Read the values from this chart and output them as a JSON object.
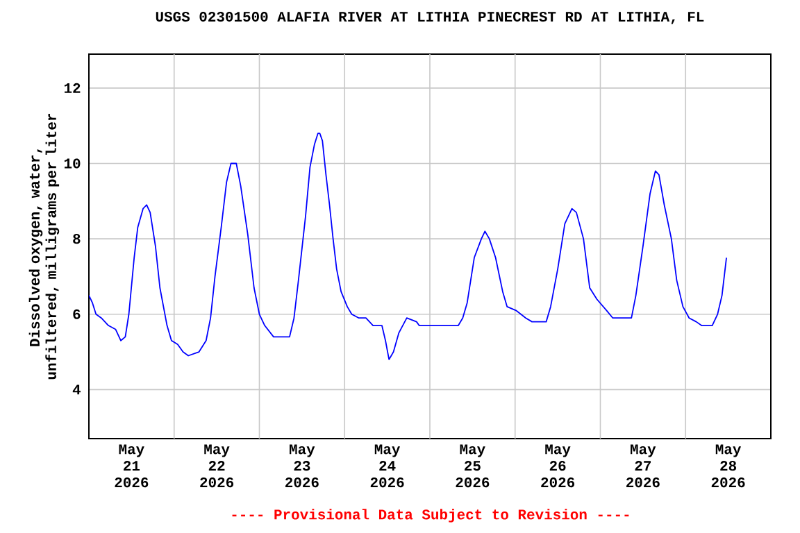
{
  "chart_data": {
    "type": "line",
    "title": "USGS 02301500 ALAFIA RIVER AT LITHIA PINECREST RD AT LITHIA, FL",
    "ylabel": "Dissolved oxygen, water, unfiltered, milligrams per liter",
    "annotations": [
      "---- Provisional Data Subject to Revision ----"
    ],
    "x": [
      "2026-05-21T00:00",
      "2026-05-21T01:00",
      "2026-05-21T02:00",
      "2026-05-21T03:30",
      "2026-05-21T05:30",
      "2026-05-21T07:30",
      "2026-05-21T09:00",
      "2026-05-21T10:15",
      "2026-05-21T11:15",
      "2026-05-21T12:45",
      "2026-05-21T13:45",
      "2026-05-21T15:15",
      "2026-05-21T16:15",
      "2026-05-21T17:15",
      "2026-05-21T18:45",
      "2026-05-21T20:00",
      "2026-05-21T22:00",
      "2026-05-21T23:15",
      "2026-05-22T01:00",
      "2026-05-22T02:30",
      "2026-05-22T04:00",
      "2026-05-22T07:00",
      "2026-05-22T09:00",
      "2026-05-22T10:15",
      "2026-05-22T11:30",
      "2026-05-22T13:15",
      "2026-05-22T14:45",
      "2026-05-22T16:00",
      "2026-05-22T17:30",
      "2026-05-22T18:45",
      "2026-05-22T20:45",
      "2026-05-22T22:30",
      "2026-05-23T00:00",
      "2026-05-23T01:30",
      "2026-05-23T04:00",
      "2026-05-23T08:30",
      "2026-05-23T09:45",
      "2026-05-23T11:00",
      "2026-05-23T13:00",
      "2026-05-23T14:15",
      "2026-05-23T15:30",
      "2026-05-23T16:30",
      "2026-05-23T17:00",
      "2026-05-23T17:45",
      "2026-05-23T18:45",
      "2026-05-23T19:45",
      "2026-05-23T20:45",
      "2026-05-23T21:45",
      "2026-05-23T23:00",
      "2026-05-24T00:45",
      "2026-05-24T02:00",
      "2026-05-24T04:00",
      "2026-05-24T06:00",
      "2026-05-24T08:00",
      "2026-05-24T10:30",
      "2026-05-24T11:30",
      "2026-05-24T12:30",
      "2026-05-24T13:45",
      "2026-05-24T15:15",
      "2026-05-24T17:30",
      "2026-05-24T20:15",
      "2026-05-24T21:00",
      "2026-05-25T08:00",
      "2026-05-25T09:15",
      "2026-05-25T10:30",
      "2026-05-25T12:30",
      "2026-05-25T14:30",
      "2026-05-25T15:30",
      "2026-05-25T16:45",
      "2026-05-25T18:30",
      "2026-05-25T20:30",
      "2026-05-25T21:45",
      "2026-05-26T00:15",
      "2026-05-26T03:00",
      "2026-05-26T04:45",
      "2026-05-26T08:45",
      "2026-05-26T10:00",
      "2026-05-26T12:00",
      "2026-05-26T14:00",
      "2026-05-26T16:00",
      "2026-05-26T17:15",
      "2026-05-26T19:15",
      "2026-05-26T21:00",
      "2026-05-26T23:00",
      "2026-05-27T01:45",
      "2026-05-27T03:30",
      "2026-05-27T08:45",
      "2026-05-27T10:00",
      "2026-05-27T12:00",
      "2026-05-27T14:00",
      "2026-05-27T15:30",
      "2026-05-27T16:30",
      "2026-05-27T18:00",
      "2026-05-27T20:00",
      "2026-05-27T21:30",
      "2026-05-27T23:15",
      "2026-05-28T01:00",
      "2026-05-28T03:00",
      "2026-05-28T04:30",
      "2026-05-28T07:30",
      "2026-05-28T09:00",
      "2026-05-28T10:15",
      "2026-05-28T11:30"
    ],
    "series": [
      {
        "color": "#0000ff",
        "values": [
          6.5,
          6.3,
          6.0,
          5.9,
          5.7,
          5.6,
          5.3,
          5.4,
          6.0,
          7.5,
          8.3,
          8.8,
          8.9,
          8.7,
          7.8,
          6.7,
          5.7,
          5.3,
          5.2,
          5.0,
          4.9,
          5.0,
          5.3,
          5.9,
          7.0,
          8.3,
          9.5,
          10.0,
          10.0,
          9.4,
          8.1,
          6.7,
          6.0,
          5.7,
          5.4,
          5.4,
          5.9,
          6.9,
          8.6,
          9.9,
          10.5,
          10.8,
          10.8,
          10.6,
          9.7,
          8.9,
          8.0,
          7.2,
          6.6,
          6.2,
          6.0,
          5.9,
          5.9,
          5.7,
          5.7,
          5.3,
          4.8,
          5.0,
          5.5,
          5.9,
          5.8,
          5.7,
          5.7,
          5.9,
          6.3,
          7.5,
          8.0,
          8.2,
          8.0,
          7.5,
          6.6,
          6.2,
          6.1,
          5.9,
          5.8,
          5.8,
          6.2,
          7.2,
          8.4,
          8.8,
          8.7,
          8.0,
          6.7,
          6.4,
          6.1,
          5.9,
          5.9,
          6.5,
          7.8,
          9.2,
          9.8,
          9.7,
          8.9,
          8.0,
          6.9,
          6.2,
          5.9,
          5.8,
          5.7,
          5.7,
          6.0,
          6.5,
          7.5
        ]
      }
    ],
    "xlim": [
      "2026-05-21T00:00",
      "2026-05-29T00:00"
    ],
    "xticks": [
      {
        "value": "2026-05-21T12:00",
        "label": "May 21 2026"
      },
      {
        "value": "2026-05-22T12:00",
        "label": "May 22 2026"
      },
      {
        "value": "2026-05-23T12:00",
        "label": "May 23 2026"
      },
      {
        "value": "2026-05-24T12:00",
        "label": "May 24 2026"
      },
      {
        "value": "2026-05-25T12:00",
        "label": "May 25 2026"
      },
      {
        "value": "2026-05-26T12:00",
        "label": "May 26 2026"
      },
      {
        "value": "2026-05-27T12:00",
        "label": "May 27 2026"
      },
      {
        "value": "2026-05-28T12:00",
        "label": "May 28 2026"
      },
      {
        "value": "2026-05-22T00:00",
        "label": null
      },
      {
        "value": "2026-05-23T00:00",
        "label": null
      },
      {
        "value": "2026-05-24T00:00",
        "label": null
      },
      {
        "value": "2026-05-25T00:00",
        "label": null
      },
      {
        "value": "2026-05-26T00:00",
        "label": null
      },
      {
        "value": "2026-05-27T00:00",
        "label": null
      },
      {
        "value": "2026-05-28T00:00",
        "label": null
      }
    ],
    "ylim": [
      2.7,
      12.9
    ],
    "yticks": [
      4,
      6,
      8,
      10,
      12
    ],
    "grid": true
  }
}
